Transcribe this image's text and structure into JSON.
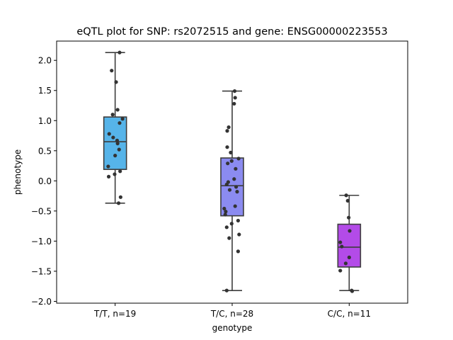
{
  "chart_data": {
    "type": "box",
    "title": "eQTL plot for SNP: rs2072515 and gene: ENSG00000223553",
    "xlabel": "genotype",
    "ylabel": "phenotype",
    "ylim": [
      -2.03,
      2.32
    ],
    "yticks": [
      2.0,
      1.5,
      1.0,
      0.5,
      0.0,
      -0.5,
      -1.0,
      -1.5,
      -2.0
    ],
    "ytick_labels": [
      "2.0",
      "1.5",
      "1.0",
      "0.5",
      "0.0",
      "−0.5",
      "−1.0",
      "−1.5",
      "−2.0"
    ],
    "grid": false,
    "groups": [
      {
        "label": "T/T, n=19",
        "color": "#56b4e9",
        "box": {
          "whisker_low": -0.37,
          "q1": 0.19,
          "median": 0.65,
          "q3": 1.06,
          "whisker_high": 2.13
        },
        "points": [
          {
            "dx": 0.45,
            "y": 2.13
          },
          {
            "dx": -0.35,
            "y": 1.83
          },
          {
            "dx": 0.1,
            "y": 1.64
          },
          {
            "dx": 0.25,
            "y": 1.18
          },
          {
            "dx": -0.25,
            "y": 1.1
          },
          {
            "dx": 0.75,
            "y": 1.03
          },
          {
            "dx": 0.45,
            "y": 0.96
          },
          {
            "dx": -0.6,
            "y": 0.78
          },
          {
            "dx": -0.2,
            "y": 0.72
          },
          {
            "dx": 0.2,
            "y": 0.67
          },
          {
            "dx": 0.25,
            "y": 0.62
          },
          {
            "dx": 0.4,
            "y": 0.52
          },
          {
            "dx": 0.0,
            "y": 0.42
          },
          {
            "dx": -0.7,
            "y": 0.24
          },
          {
            "dx": 0.5,
            "y": 0.16
          },
          {
            "dx": -0.05,
            "y": 0.11
          },
          {
            "dx": -0.65,
            "y": 0.07
          },
          {
            "dx": 0.55,
            "y": -0.27
          },
          {
            "dx": 0.35,
            "y": -0.37
          }
        ]
      },
      {
        "label": "T/C, n=28",
        "color": "#8b8bf0",
        "box": {
          "whisker_low": -1.82,
          "q1": -0.58,
          "median": -0.08,
          "q3": 0.38,
          "whisker_high": 1.49
        },
        "points": [
          {
            "dx": 0.25,
            "y": 1.49
          },
          {
            "dx": 0.3,
            "y": 1.38
          },
          {
            "dx": 0.2,
            "y": 1.28
          },
          {
            "dx": -0.35,
            "y": 0.89
          },
          {
            "dx": -0.5,
            "y": 0.83
          },
          {
            "dx": -0.5,
            "y": 0.56
          },
          {
            "dx": -0.15,
            "y": 0.47
          },
          {
            "dx": 0.65,
            "y": 0.37
          },
          {
            "dx": -0.05,
            "y": 0.33
          },
          {
            "dx": -0.45,
            "y": 0.29
          },
          {
            "dx": 0.35,
            "y": 0.2
          },
          {
            "dx": 0.2,
            "y": 0.03
          },
          {
            "dx": -0.4,
            "y": -0.02
          },
          {
            "dx": -0.55,
            "y": -0.06
          },
          {
            "dx": 0.4,
            "y": -0.1
          },
          {
            "dx": -0.25,
            "y": -0.15
          },
          {
            "dx": 0.5,
            "y": -0.18
          },
          {
            "dx": 0.3,
            "y": -0.42
          },
          {
            "dx": -0.8,
            "y": -0.46
          },
          {
            "dx": -0.65,
            "y": -0.51
          },
          {
            "dx": -0.7,
            "y": -0.56
          },
          {
            "dx": 0.6,
            "y": -0.66
          },
          {
            "dx": -0.05,
            "y": -0.71
          },
          {
            "dx": -0.55,
            "y": -0.77
          },
          {
            "dx": 0.7,
            "y": -0.89
          },
          {
            "dx": -0.3,
            "y": -0.95
          },
          {
            "dx": 0.6,
            "y": -1.17
          },
          {
            "dx": -0.55,
            "y": -1.82
          }
        ]
      },
      {
        "label": "C/C, n=11",
        "color": "#b34be8",
        "box": {
          "whisker_low": -1.82,
          "q1": -1.43,
          "median": -1.1,
          "q3": -0.72,
          "whisker_high": -0.24
        },
        "points": [
          {
            "dx": -0.3,
            "y": -0.24
          },
          {
            "dx": -0.15,
            "y": -0.33
          },
          {
            "dx": -0.05,
            "y": -0.61
          },
          {
            "dx": 0.05,
            "y": -0.83
          },
          {
            "dx": -0.9,
            "y": -1.02
          },
          {
            "dx": -0.75,
            "y": -1.09
          },
          {
            "dx": 0.0,
            "y": -1.27
          },
          {
            "dx": -0.35,
            "y": -1.37
          },
          {
            "dx": -0.9,
            "y": -1.49
          },
          {
            "dx": 0.25,
            "y": -1.82
          },
          {
            "dx": 0.3,
            "y": -1.83
          }
        ]
      }
    ]
  }
}
